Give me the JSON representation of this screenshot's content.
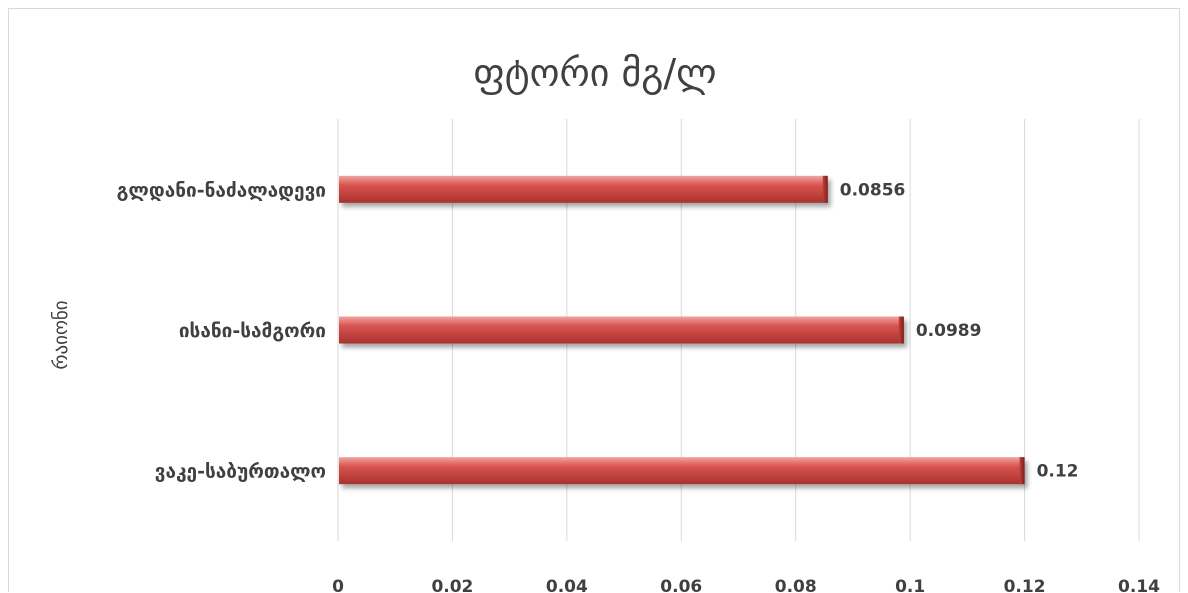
{
  "chart_data": {
    "type": "bar",
    "orientation": "horizontal",
    "title": "ფტორი მგ/ლ",
    "ylabel": "რაიონი",
    "xlabel": "",
    "categories": [
      "გლდანი-ნაძალადევი",
      "ისანი-სამგორი",
      "ვაკე-საბურთალო"
    ],
    "values": [
      0.0856,
      0.0989,
      0.12
    ],
    "data_labels": [
      "0.0856",
      "0.0989",
      "0.12"
    ],
    "xlim": [
      0,
      0.14
    ],
    "x_ticks": [
      "0",
      "0.02",
      "0.04",
      "0.06",
      "0.08",
      "0.1",
      "0.12",
      "0.14"
    ],
    "grid": true,
    "bar_color": "#d9534f",
    "bar_dark_color": "#a52a2a",
    "grid_color": "#d9d9d9",
    "text_color": "#404040"
  }
}
